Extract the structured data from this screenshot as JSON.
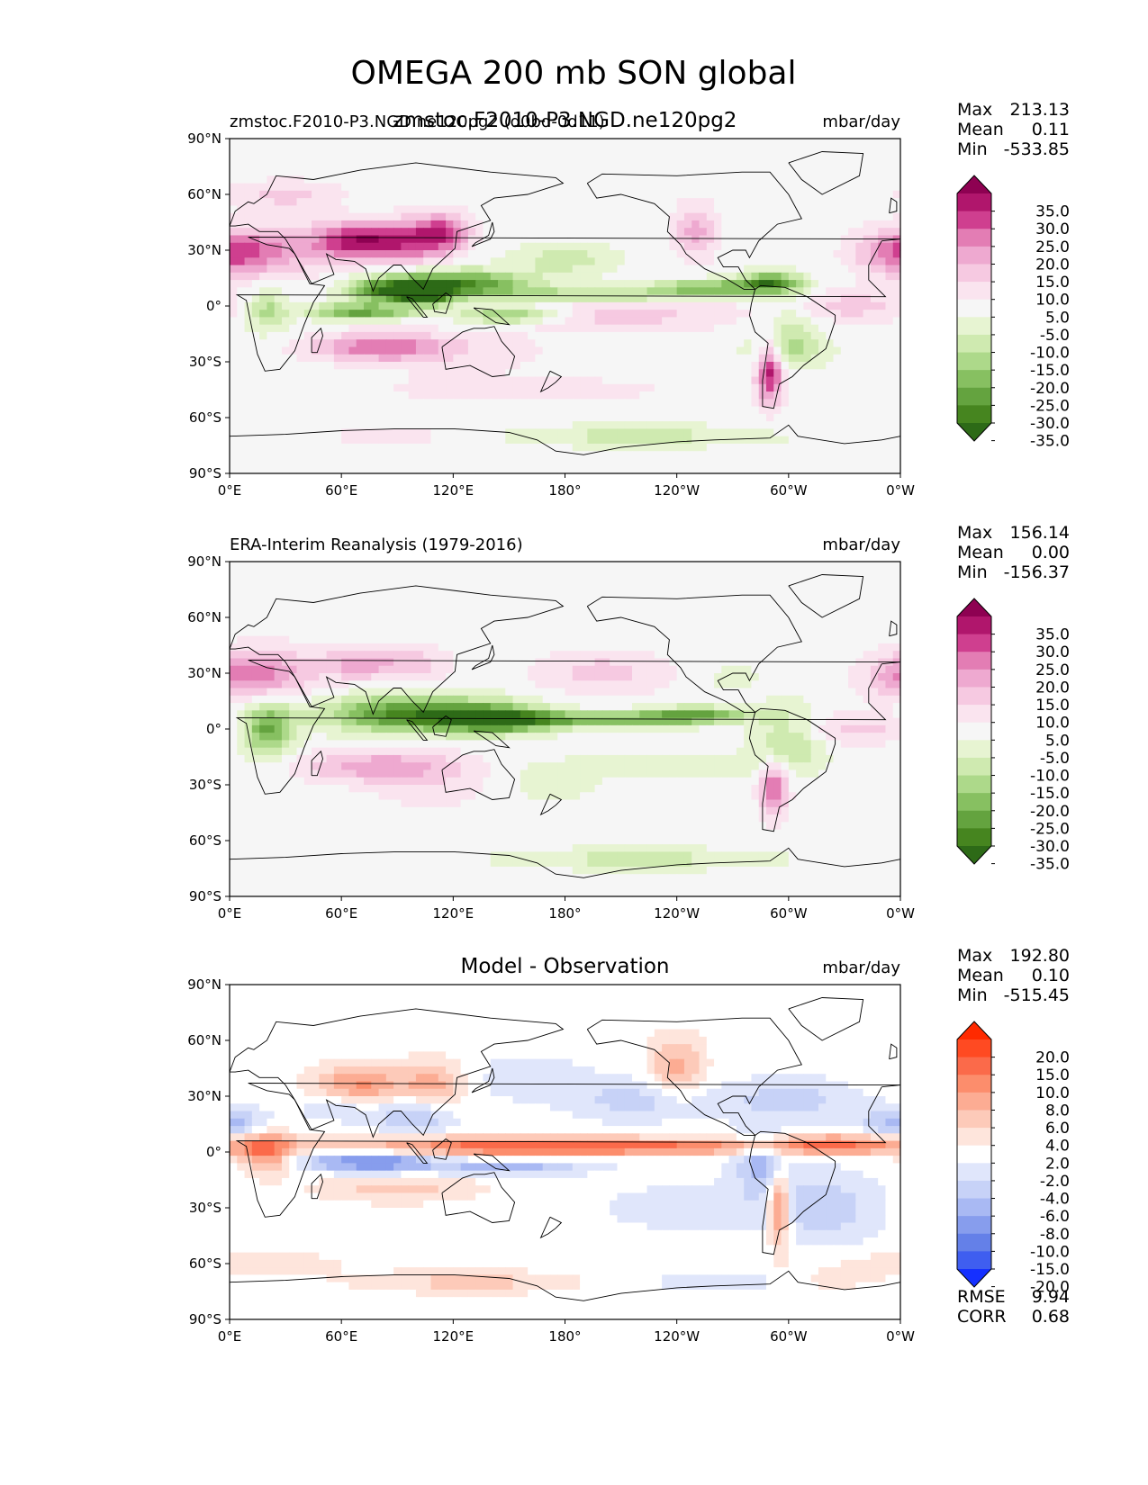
{
  "figure_title": "OMEGA 200 mb SON global",
  "chart_data": [
    {
      "type": "heatmap",
      "kind": "filled contour map",
      "title_left": "zmstoc.F2010-P3.NGD.ne120pg2 (d0bd-0d11)",
      "title_center": "zmstoc.F2010-P3.NGD.ne120pg2",
      "units": "mbar/day",
      "stats": {
        "max_label": "Max",
        "max": "213.13",
        "mean_label": "Mean",
        "mean": "0.11",
        "min_label": "Min",
        "min": "-533.85"
      },
      "colorbar": {
        "tick_labels": [
          "35.0",
          "30.0",
          "25.0",
          "20.0",
          "15.0",
          "10.0",
          "5.0",
          "-5.0",
          "-10.0",
          "-15.0",
          "-20.0",
          "-25.0",
          "-30.0",
          "-35.0"
        ],
        "colors": [
          "#8e0152",
          "#b0166c",
          "#cf3f8f",
          "#e37db4",
          "#eea9d0",
          "#f6c9e1",
          "#fae4ef",
          "#f6f6f6",
          "#e7f4d2",
          "#cfeab0",
          "#add98a",
          "#87c061",
          "#64a33f",
          "#46851f",
          "#2d6a17"
        ]
      },
      "xticks": [
        "0°E",
        "60°E",
        "120°E",
        "180°",
        "120°W",
        "60°W",
        "0°W"
      ],
      "yticks": [
        "90°N",
        "60°N",
        "30°N",
        "0°",
        "30°S",
        "60°S",
        "90°S"
      ],
      "xlim": [
        0,
        360
      ],
      "ylim": [
        -90,
        90
      ]
    },
    {
      "type": "heatmap",
      "kind": "filled contour map",
      "title_left": "ERA-Interim Reanalysis (1979-2016)",
      "units": "mbar/day",
      "stats": {
        "max_label": "Max",
        "max": "156.14",
        "mean_label": "Mean",
        "mean": "0.00",
        "min_label": "Min",
        "min": "-156.37"
      },
      "colorbar": {
        "tick_labels": [
          "35.0",
          "30.0",
          "25.0",
          "20.0",
          "15.0",
          "10.0",
          "5.0",
          "-5.0",
          "-10.0",
          "-15.0",
          "-20.0",
          "-25.0",
          "-30.0",
          "-35.0"
        ],
        "colors": [
          "#8e0152",
          "#b0166c",
          "#cf3f8f",
          "#e37db4",
          "#eea9d0",
          "#f6c9e1",
          "#fae4ef",
          "#f6f6f6",
          "#e7f4d2",
          "#cfeab0",
          "#add98a",
          "#87c061",
          "#64a33f",
          "#46851f",
          "#2d6a17"
        ]
      },
      "xticks": [
        "0°E",
        "60°E",
        "120°E",
        "180°",
        "120°W",
        "60°W",
        "0°W"
      ],
      "yticks": [
        "90°N",
        "60°N",
        "30°N",
        "0°",
        "30°S",
        "60°S",
        "90°S"
      ],
      "xlim": [
        0,
        360
      ],
      "ylim": [
        -90,
        90
      ]
    },
    {
      "type": "heatmap",
      "kind": "filled contour map",
      "title_center": "Model - Observation",
      "units": "mbar/day",
      "stats": {
        "max_label": "Max",
        "max": "192.80",
        "mean_label": "Mean",
        "mean": "0.10",
        "min_label": "Min",
        "min": "-515.45"
      },
      "extra_stats": {
        "rmse_label": "RMSE",
        "rmse": "9.94",
        "corr_label": "CORR",
        "corr": "0.68"
      },
      "colorbar": {
        "tick_labels": [
          "20.0",
          "15.0",
          "10.0",
          "8.0",
          "6.0",
          "4.0",
          "2.0",
          "-2.0",
          "-4.0",
          "-6.0",
          "-8.0",
          "-10.0",
          "-15.0",
          "-20.0"
        ],
        "colors": [
          "#ff2a00",
          "#ff4a22",
          "#fb6a4a",
          "#fc8d6c",
          "#fcac93",
          "#fdcab9",
          "#fee5dc",
          "#ffffff",
          "#e0e6fb",
          "#c7d2f7",
          "#a9b9f3",
          "#879ded",
          "#6480e8",
          "#3f5ef0",
          "#1530ff"
        ]
      },
      "xticks": [
        "0°E",
        "60°E",
        "120°E",
        "180°",
        "120°W",
        "60°W",
        "0°W"
      ],
      "yticks": [
        "90°N",
        "60°N",
        "30°N",
        "0°",
        "30°S",
        "60°S",
        "90°S"
      ],
      "xlim": [
        0,
        360
      ],
      "ylim": [
        -90,
        90
      ]
    }
  ]
}
